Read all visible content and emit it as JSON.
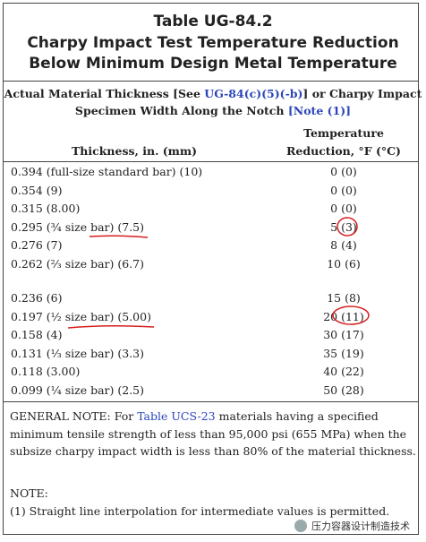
{
  "title": {
    "lines": [
      "Table UG-84.2",
      "Charpy Impact Test Temperature Reduction",
      "Below Minimum Design Metal Temperature"
    ]
  },
  "header": {
    "line1": [
      "Actual Material Thickness [See ",
      "UG-84(c)(5)(-b)",
      "] or Charpy Impact"
    ],
    "line2": [
      "Specimen Width Along the Notch ",
      "[Note (1)]"
    ],
    "col1": "Thickness, in. (mm)",
    "col2": [
      "Temperature",
      "Reduction, °F (°C)"
    ]
  },
  "table": {
    "groups": [
      [
        [
          "0.394 (full-size standard bar) (10)",
          "0 (0)"
        ],
        [
          "0.354 (9)",
          "0 (0)"
        ],
        [
          "0.315 (8.00)",
          "0 (0)"
        ],
        [
          "0.295 (¾ size bar) (7.5)",
          "5 (3)"
        ],
        [
          "0.276 (7)",
          "8 (4)"
        ],
        [
          "0.262 (⅔ size bar) (6.7)",
          "10 (6)"
        ]
      ],
      [
        [
          "0.236 (6)",
          "15 (8)"
        ],
        [
          "0.197 (½ size bar) (5.00)",
          "20 (11)"
        ],
        [
          "0.158 (4)",
          "30 (17)"
        ],
        [
          "0.131 (⅓ size bar) (3.3)",
          "35 (19)"
        ],
        [
          "0.118 (3.00)",
          "40 (22)"
        ],
        [
          "0.099 (¼ size bar) (2.5)",
          "50 (28)"
        ]
      ]
    ]
  },
  "general_note": [
    "GENERAL NOTE:  For ",
    "Table UCS-23",
    " materials having a specified minimum tensile strength of less than 95,000 psi (655 MPa) when the subsize charpy impact width is less than 80% of the material thickness."
  ],
  "note": {
    "heading": "NOTE:",
    "items": [
      "(1)  Straight line interpolation for intermediate values is permitted."
    ]
  },
  "watermark": "压力容器设计制造技术"
}
